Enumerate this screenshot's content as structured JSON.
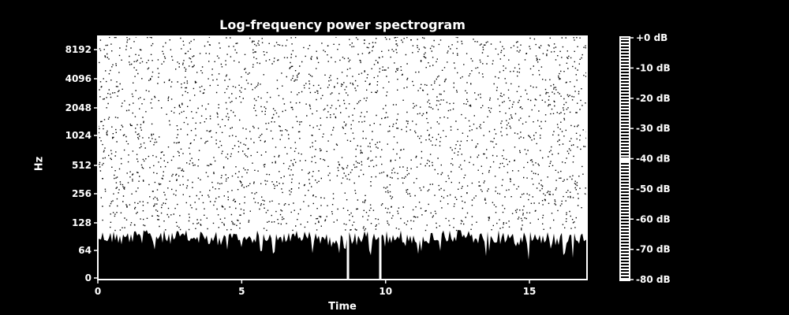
{
  "chart_data": {
    "type": "heatmap",
    "title": "Log-frequency power spectrogram",
    "xlabel": "Time",
    "ylabel": "Hz",
    "x_ticks": [
      "0",
      "5",
      "10",
      "15"
    ],
    "y_ticks": [
      "0",
      "64",
      "128",
      "256",
      "512",
      "1024",
      "2048",
      "4096",
      "8192"
    ],
    "xlim": [
      0,
      17
    ],
    "y_scale": "log",
    "colorbar": {
      "ticks": [
        "+0 dB",
        "-10 dB",
        "-20 dB",
        "-30 dB",
        "-40 dB",
        "-50 dB",
        "-60 dB",
        "-70 dB",
        "-80 dB"
      ],
      "range": [
        -80,
        0
      ]
    },
    "colors": {
      "background": "#000000",
      "foreground": "#ffffff"
    }
  }
}
